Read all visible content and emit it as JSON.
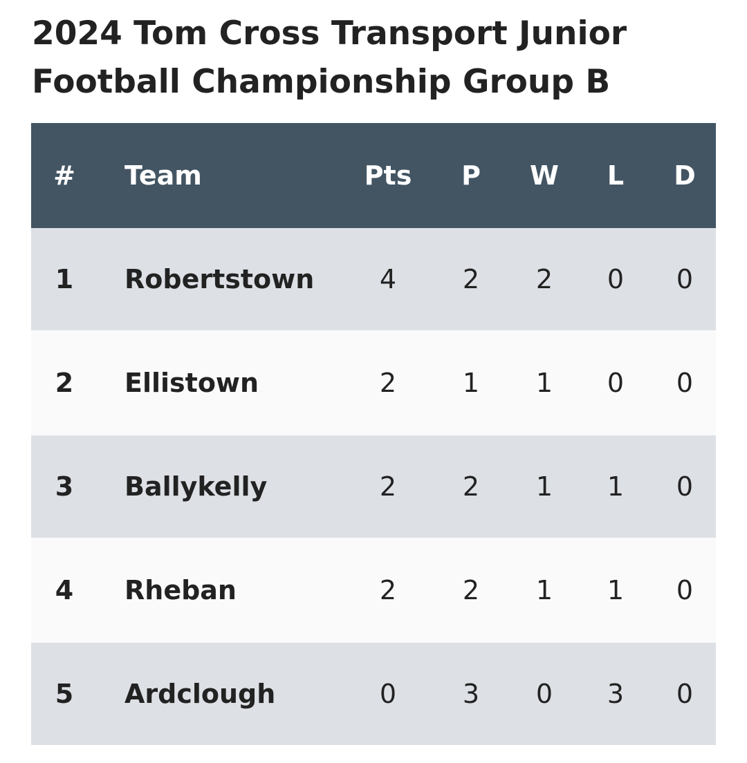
{
  "title": "2024 Tom Cross Transport Junior Football Championship Group B",
  "table": {
    "header": [
      "#",
      "Team",
      "Pts",
      "P",
      "W",
      "L",
      "D"
    ],
    "rows": [
      [
        "1",
        "Robertstown",
        "4",
        "2",
        "2",
        "0",
        "0"
      ],
      [
        "2",
        "Ellistown",
        "2",
        "1",
        "1",
        "0",
        "0"
      ],
      [
        "3",
        "Ballykelly",
        "2",
        "2",
        "1",
        "1",
        "0"
      ],
      [
        "4",
        "Rheban",
        "2",
        "2",
        "1",
        "1",
        "0"
      ],
      [
        "5",
        "Ardclough",
        "0",
        "3",
        "0",
        "3",
        "0"
      ]
    ]
  }
}
